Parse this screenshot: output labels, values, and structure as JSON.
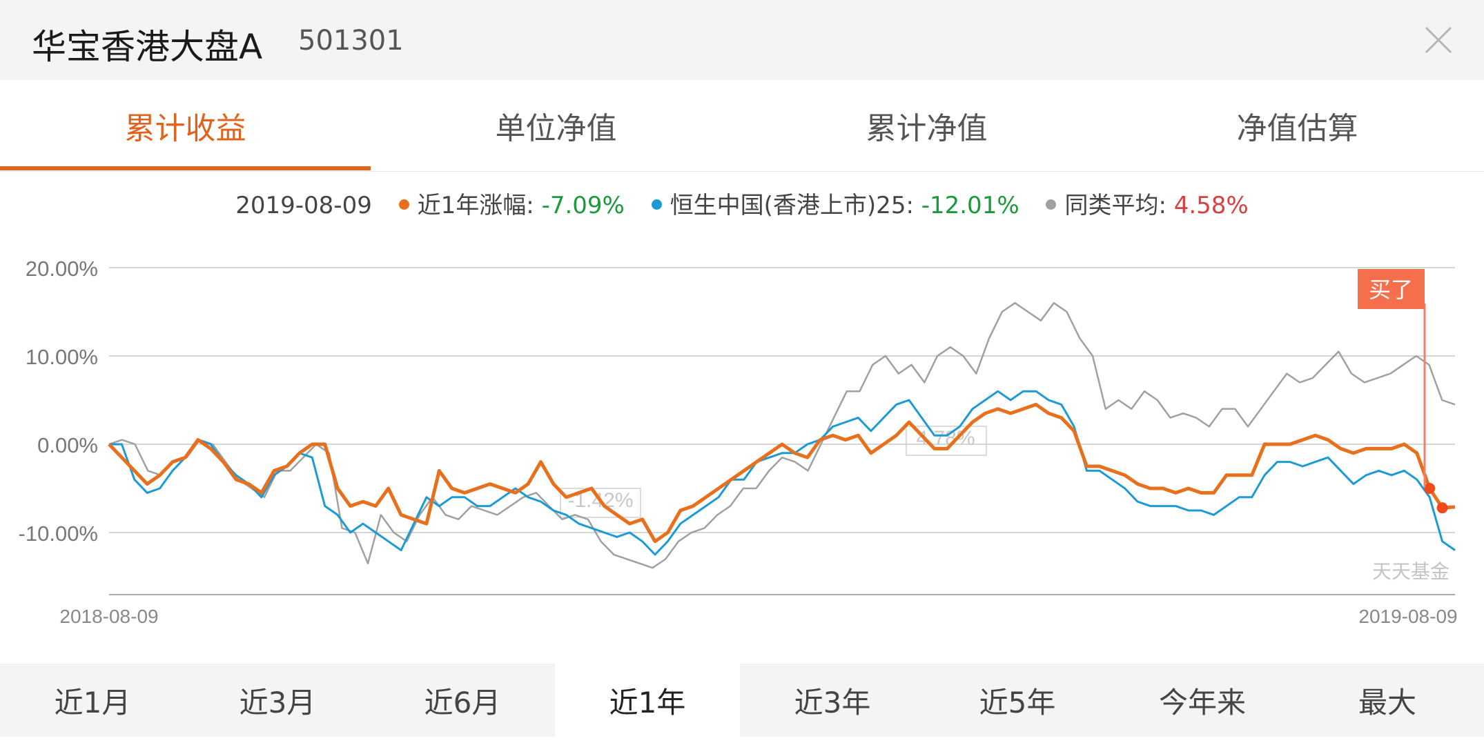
{
  "header": {
    "fund_name": "华宝香港大盘A",
    "fund_code": "501301",
    "close_icon": "close-icon"
  },
  "tabs": [
    {
      "label": "累计收益",
      "active": true
    },
    {
      "label": "单位净值",
      "active": false
    },
    {
      "label": "累计净值",
      "active": false
    },
    {
      "label": "净值估算",
      "active": false
    }
  ],
  "legend": {
    "date": "2019-08-09",
    "items": [
      {
        "name": "近1年涨幅",
        "value": "-7.09%",
        "color": "#e8701d",
        "value_color": "#1a9a3a"
      },
      {
        "name": "恒生中国(香港上市)25",
        "value": "-12.01%",
        "color": "#1a9ad6",
        "value_color": "#1a9a3a"
      },
      {
        "name": "同类平均",
        "value": "4.58%",
        "color": "#a0a0a0",
        "value_color": "#d93f3f"
      }
    ]
  },
  "chart_data": {
    "type": "line",
    "x_start_label": "2018-08-09",
    "x_end_label": "2019-08-09",
    "ylim": [
      -17,
      20
    ],
    "y_ticks": [
      "20.00%",
      "10.00%",
      "0.00%",
      "-10.00%"
    ],
    "y_tick_values": [
      20,
      10,
      0,
      -10
    ],
    "grid": true,
    "annotations": {
      "buy_label": "买了",
      "watermark": "天天基金",
      "ghost_labels": [
        "-1.42%",
        "4.78%"
      ]
    },
    "series": [
      {
        "color": "#a0a0a0",
        "values": [
          0,
          0.5,
          0,
          -3,
          -3.5,
          -2,
          -1.5,
          0.5,
          0,
          -2,
          -4,
          -5,
          -6,
          -3,
          -3,
          -1.5,
          0,
          -1,
          -9.5,
          -10,
          -13.5,
          -8,
          -10,
          -11,
          -8,
          -6,
          -8,
          -8.5,
          -7,
          -7.5,
          -8,
          -7,
          -6,
          -5.5,
          -7,
          -8.5,
          -8,
          -8.5,
          -11,
          -12.5,
          -13,
          -13.5,
          -14,
          -13,
          -11,
          -10,
          -9.5,
          -8,
          -7,
          -5,
          -5,
          -3,
          -1.5,
          -2,
          -3,
          0,
          3,
          6,
          6,
          9,
          10,
          8,
          9,
          7,
          10,
          11,
          10,
          8,
          12,
          15,
          16,
          15,
          14,
          16,
          15,
          12,
          10,
          4,
          5,
          4,
          6,
          5,
          3,
          3.5,
          3,
          2,
          4,
          4,
          2,
          4,
          6,
          8,
          7,
          7.5,
          9,
          10.5,
          8,
          7,
          7.5,
          8,
          9,
          10,
          9,
          5,
          4.5
        ]
      },
      {
        "color": "#1a9ad6",
        "values": [
          0,
          0,
          -4,
          -5.5,
          -5,
          -3,
          -1.5,
          0.5,
          0,
          -2,
          -3.5,
          -4.5,
          -6,
          -3.5,
          -2.5,
          -1,
          -1.5,
          -7,
          -8,
          -10,
          -9,
          -10,
          -11,
          -12,
          -9,
          -6,
          -7,
          -6,
          -6,
          -7,
          -7,
          -6,
          -5,
          -6,
          -6.5,
          -7.5,
          -8,
          -9,
          -9.5,
          -10,
          -10.5,
          -10,
          -11,
          -12.5,
          -11,
          -9,
          -8,
          -7,
          -6,
          -4,
          -4,
          -2,
          -1.5,
          -1,
          -1,
          0,
          0.5,
          2,
          2.5,
          3,
          1.5,
          3,
          4.5,
          5,
          3,
          1,
          1,
          2,
          4,
          5,
          6,
          5,
          6,
          6,
          5,
          4.5,
          2,
          -3,
          -3,
          -4,
          -5,
          -6.5,
          -7,
          -7,
          -7,
          -7.5,
          -7.5,
          -8,
          -7,
          -6,
          -6,
          -3.5,
          -2,
          -2,
          -2.5,
          -2,
          -1.5,
          -3,
          -4.5,
          -3.5,
          -3,
          -3.5,
          -3,
          -4,
          -6,
          -11,
          -12
        ]
      },
      {
        "color": "#e8701d",
        "values": [
          0,
          -1.5,
          -3,
          -4.5,
          -3.5,
          -2,
          -1.5,
          0.5,
          -0.5,
          -2,
          -4,
          -4.5,
          -5.5,
          -3,
          -2.5,
          -1,
          0,
          0,
          -5,
          -7,
          -6.5,
          -7,
          -5,
          -8,
          -8.5,
          -9,
          -3,
          -5,
          -5.5,
          -5,
          -4.5,
          -5,
          -5.5,
          -4.5,
          -2,
          -4.5,
          -6,
          -5.5,
          -5,
          -7,
          -8,
          -9,
          -8.5,
          -11,
          -10,
          -7.5,
          -7,
          -6,
          -5,
          -4,
          -3,
          -2,
          -1,
          0,
          -1,
          -1.5,
          0.5,
          1,
          0.5,
          1,
          -1,
          0,
          1,
          2.5,
          1,
          -0.5,
          -0.5,
          1,
          2.5,
          3.5,
          4,
          3.5,
          4,
          4.5,
          3.5,
          3,
          1.5,
          -2.5,
          -2.5,
          -3,
          -3.5,
          -4.5,
          -5,
          -5,
          -5.5,
          -5,
          -5.5,
          -5.5,
          -3.5,
          -3.5,
          -3.5,
          0,
          0,
          0,
          0.5,
          1,
          0.5,
          -0.5,
          -1,
          -0.5,
          -0.5,
          -0.5,
          0,
          -1,
          -5,
          -7.2,
          -7.1
        ]
      }
    ]
  },
  "periods": [
    {
      "label": "近1月",
      "active": false
    },
    {
      "label": "近3月",
      "active": false
    },
    {
      "label": "近6月",
      "active": false
    },
    {
      "label": "近1年",
      "active": true
    },
    {
      "label": "近3年",
      "active": false
    },
    {
      "label": "近5年",
      "active": false
    },
    {
      "label": "今年来",
      "active": false
    },
    {
      "label": "最大",
      "active": false
    }
  ]
}
